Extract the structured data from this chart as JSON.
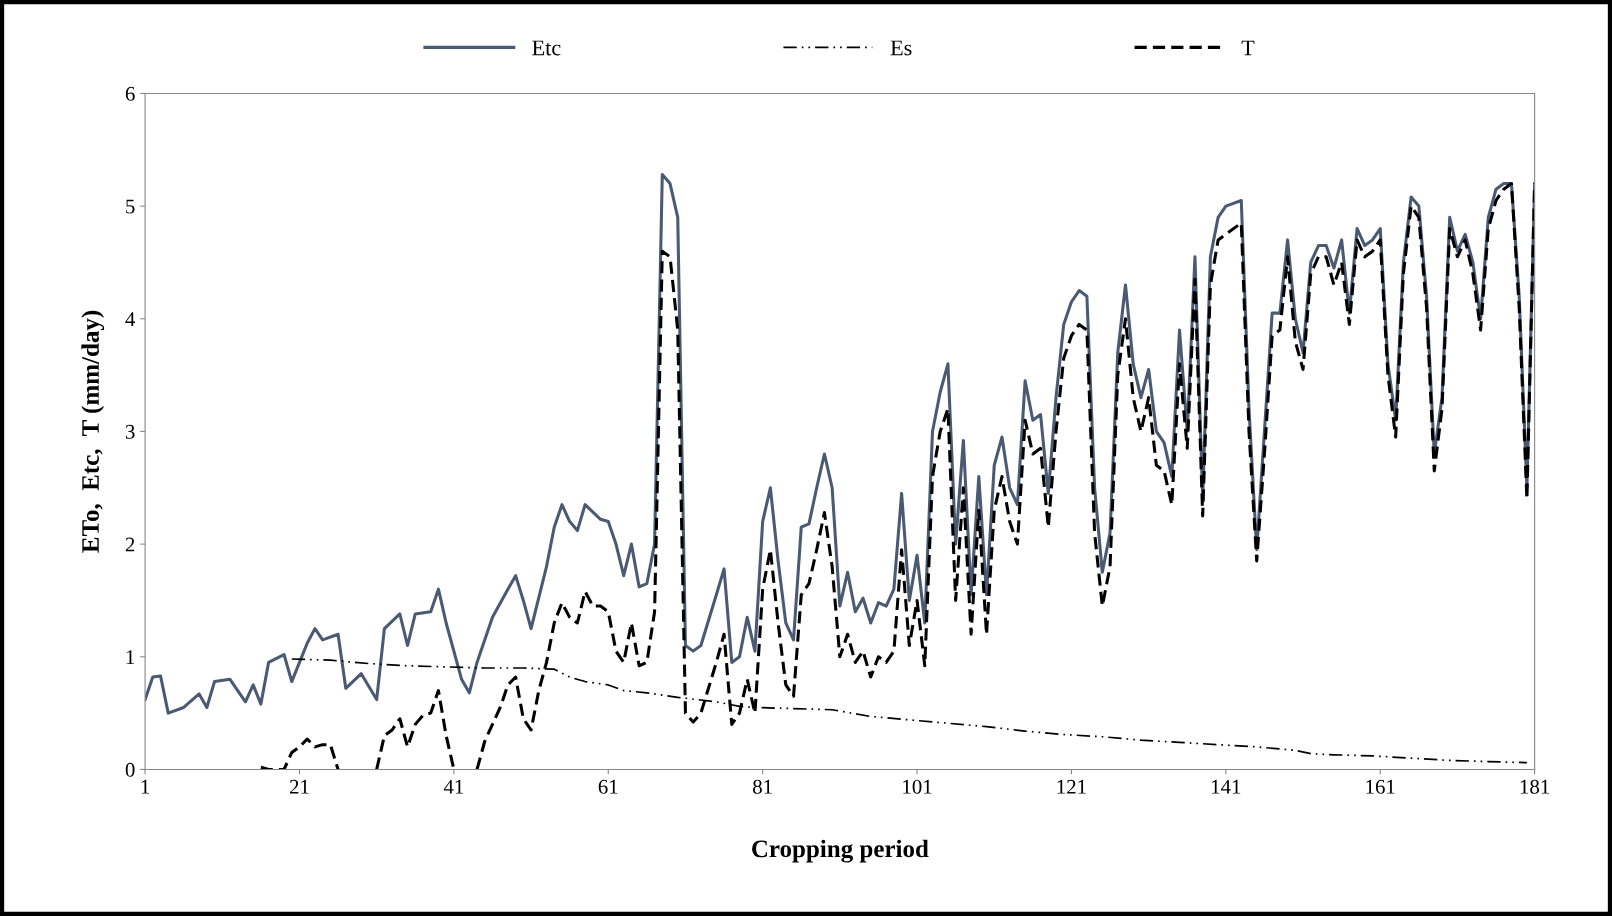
{
  "chart_data": {
    "type": "line",
    "xlabel": "Cropping period",
    "ylabel": "ETo,  Etc,  T (mm/day)",
    "xlim": [
      1,
      181
    ],
    "ylim": [
      0,
      6
    ],
    "xticks": [
      1,
      21,
      41,
      61,
      81,
      101,
      121,
      141,
      161,
      181
    ],
    "yticks": [
      0,
      1,
      2,
      3,
      4,
      5,
      6
    ],
    "grid": false,
    "legend": "top",
    "marker": "none",
    "series": [
      {
        "name": "Etc",
        "color": "#4a5a73",
        "line_style": "solid",
        "x": [
          1,
          2,
          3,
          4,
          6,
          8,
          9,
          10,
          12,
          14,
          15,
          16,
          17,
          19,
          20,
          21,
          22,
          23,
          24,
          26,
          27,
          29,
          31,
          32,
          34,
          35,
          36,
          38,
          39,
          40,
          42,
          43,
          44,
          46,
          48,
          49,
          50,
          51,
          53,
          54,
          55,
          56,
          57,
          58,
          60,
          61,
          62,
          63,
          64,
          65,
          66,
          67,
          68,
          69,
          70,
          71,
          72,
          73,
          75,
          76,
          77,
          78,
          79,
          80,
          81,
          82,
          83,
          84,
          85,
          86,
          87,
          88,
          89,
          90,
          91,
          92,
          93,
          94,
          95,
          96,
          97,
          98,
          99,
          100,
          101,
          102,
          103,
          104,
          105,
          106,
          107,
          108,
          109,
          110,
          111,
          112,
          113,
          114,
          115,
          116,
          117,
          118,
          119,
          120,
          121,
          122,
          123,
          124,
          125,
          126,
          127,
          128,
          129,
          130,
          131,
          132,
          133,
          134,
          135,
          136,
          137,
          138,
          139,
          140,
          141,
          143,
          144,
          145,
          146,
          147,
          148,
          149,
          150,
          151,
          152,
          153,
          154,
          155,
          156,
          157,
          158,
          159,
          160,
          161,
          162,
          163,
          164,
          165,
          166,
          167,
          168,
          169,
          170,
          171,
          172,
          173,
          174,
          175,
          176,
          177,
          178,
          179,
          180,
          181
        ],
        "values": [
          0.62,
          0.82,
          0.83,
          0.5,
          0.55,
          0.67,
          0.55,
          0.78,
          0.8,
          0.6,
          0.75,
          0.58,
          0.95,
          1.02,
          0.78,
          0.95,
          1.12,
          1.25,
          1.15,
          1.2,
          0.72,
          0.85,
          0.62,
          1.25,
          1.38,
          1.1,
          1.38,
          1.4,
          1.6,
          1.3,
          0.8,
          0.68,
          0.95,
          1.35,
          1.6,
          1.72,
          1.5,
          1.25,
          1.8,
          2.15,
          2.35,
          2.2,
          2.12,
          2.35,
          2.22,
          2.2,
          2.0,
          1.72,
          2.0,
          1.62,
          1.65,
          2.0,
          5.28,
          5.2,
          4.9,
          1.1,
          1.05,
          1.1,
          1.55,
          1.78,
          0.95,
          1.0,
          1.35,
          1.05,
          2.2,
          2.5,
          1.85,
          1.3,
          1.15,
          2.15,
          2.18,
          2.5,
          2.8,
          2.5,
          1.45,
          1.75,
          1.4,
          1.52,
          1.3,
          1.48,
          1.45,
          1.6,
          2.45,
          1.5,
          1.9,
          1.3,
          3.0,
          3.35,
          3.6,
          2.0,
          2.92,
          1.55,
          2.6,
          1.55,
          2.7,
          2.95,
          2.5,
          2.35,
          3.45,
          3.1,
          3.15,
          2.45,
          3.3,
          3.95,
          4.15,
          4.25,
          4.2,
          2.5,
          1.75,
          2.1,
          3.7,
          4.3,
          3.6,
          3.3,
          3.55,
          3.0,
          2.9,
          2.6,
          3.9,
          3.0,
          4.55,
          2.4,
          4.55,
          4.9,
          5.0,
          5.05,
          3.2,
          1.95,
          3.0,
          4.05,
          4.05,
          4.7,
          4.0,
          3.7,
          4.5,
          4.65,
          4.65,
          4.45,
          4.7,
          4.05,
          4.8,
          4.65,
          4.7,
          4.8,
          3.6,
          3.1,
          4.5,
          5.08,
          5.0,
          4.2,
          2.8,
          3.3,
          4.9,
          4.6,
          4.75,
          4.5,
          4.0,
          4.9,
          5.15,
          5.2,
          5.2,
          4.2,
          2.5,
          5.2
        ]
      },
      {
        "name": "Es",
        "color": "#000000",
        "line_style": "dashdot",
        "x": [
          20,
          25,
          30,
          35,
          40,
          45,
          50,
          54,
          56,
          58,
          61,
          63,
          66,
          70,
          75,
          78,
          80,
          85,
          90,
          95,
          100,
          105,
          110,
          115,
          120,
          125,
          130,
          135,
          140,
          145,
          150,
          152,
          155,
          160,
          165,
          170,
          175,
          180
        ],
        "values": [
          0.98,
          0.97,
          0.94,
          0.92,
          0.91,
          0.9,
          0.9,
          0.89,
          0.82,
          0.78,
          0.75,
          0.7,
          0.68,
          0.64,
          0.6,
          0.56,
          0.55,
          0.54,
          0.53,
          0.47,
          0.44,
          0.41,
          0.38,
          0.34,
          0.31,
          0.29,
          0.26,
          0.24,
          0.22,
          0.2,
          0.17,
          0.14,
          0.13,
          0.12,
          0.1,
          0.08,
          0.07,
          0.06
        ]
      },
      {
        "name": "T",
        "color": "#000000",
        "line_style": "dashed",
        "x": [
          16,
          17,
          19,
          20,
          21,
          22,
          23,
          24,
          25,
          26,
          28,
          31,
          32,
          33,
          34,
          35,
          36,
          37,
          38,
          39,
          40,
          41,
          43,
          44,
          45,
          47,
          48,
          49,
          50,
          51,
          52,
          53,
          54,
          55,
          56,
          57,
          58,
          59,
          60,
          61,
          62,
          63,
          64,
          65,
          66,
          67,
          68,
          69,
          70,
          71,
          72,
          73,
          75,
          76,
          77,
          78,
          79,
          80,
          81,
          82,
          83,
          84,
          85,
          86,
          87,
          88,
          89,
          90,
          91,
          92,
          93,
          94,
          95,
          96,
          97,
          98,
          99,
          100,
          101,
          102,
          103,
          104,
          105,
          106,
          107,
          108,
          109,
          110,
          111,
          112,
          113,
          114,
          115,
          116,
          117,
          118,
          119,
          120,
          121,
          122,
          123,
          124,
          125,
          126,
          127,
          128,
          129,
          130,
          131,
          132,
          133,
          134,
          135,
          136,
          137,
          138,
          139,
          140,
          141,
          143,
          144,
          145,
          146,
          147,
          148,
          149,
          150,
          151,
          152,
          153,
          154,
          155,
          156,
          157,
          158,
          159,
          160,
          161,
          162,
          163,
          164,
          165,
          166,
          167,
          168,
          169,
          170,
          171,
          172,
          173,
          174,
          175,
          176,
          177,
          178,
          179,
          180,
          181
        ],
        "values": [
          0.02,
          0.0,
          0.0,
          0.15,
          0.2,
          0.27,
          0.2,
          0.22,
          0.22,
          0.0,
          null,
          0.0,
          0.3,
          0.35,
          0.45,
          0.2,
          0.4,
          0.48,
          0.5,
          0.7,
          0.3,
          0.0,
          null,
          0.0,
          0.25,
          0.55,
          0.75,
          0.82,
          0.45,
          0.35,
          0.7,
          0.95,
          1.3,
          1.48,
          1.35,
          1.3,
          1.58,
          1.45,
          1.45,
          1.4,
          1.05,
          0.95,
          1.3,
          0.92,
          0.95,
          1.4,
          4.6,
          4.55,
          3.9,
          0.5,
          0.42,
          0.5,
          0.95,
          1.2,
          0.4,
          0.5,
          0.8,
          0.5,
          1.6,
          1.95,
          1.3,
          0.75,
          0.65,
          1.55,
          1.65,
          1.95,
          2.28,
          1.8,
          1.0,
          1.2,
          0.95,
          1.05,
          0.82,
          1.0,
          0.95,
          1.05,
          1.95,
          1.1,
          1.5,
          0.92,
          2.6,
          3.0,
          3.2,
          1.5,
          2.5,
          1.2,
          2.3,
          1.2,
          2.3,
          2.6,
          2.2,
          2.0,
          3.1,
          2.8,
          2.85,
          2.15,
          3.0,
          3.65,
          3.85,
          3.95,
          3.9,
          2.1,
          1.45,
          1.8,
          3.5,
          4.0,
          3.3,
          3.0,
          3.3,
          2.7,
          2.65,
          2.35,
          3.6,
          2.85,
          4.35,
          2.25,
          4.3,
          4.7,
          4.75,
          4.85,
          3.0,
          1.85,
          2.8,
          3.85,
          3.9,
          4.55,
          3.8,
          3.55,
          4.4,
          4.55,
          4.55,
          4.3,
          4.5,
          3.95,
          4.7,
          4.55,
          4.6,
          4.7,
          3.5,
          2.95,
          4.4,
          5.0,
          4.9,
          4.1,
          2.65,
          3.2,
          4.8,
          4.55,
          4.7,
          4.4,
          3.9,
          4.8,
          5.05,
          5.15,
          5.2,
          4.1,
          2.4,
          5.2
        ]
      }
    ]
  }
}
